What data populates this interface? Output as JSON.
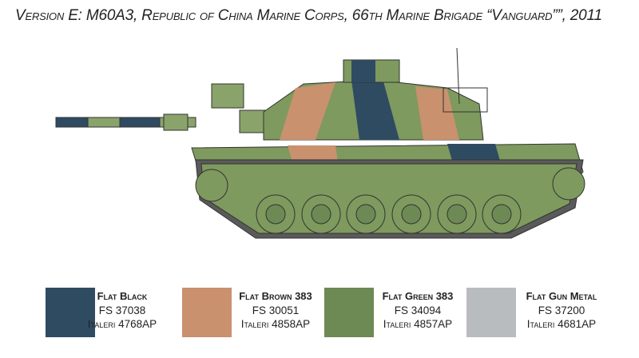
{
  "title": "Version E: M60A3, Republic of China Marine Corps, 66th Marine Brigade “Vanguard””, 2011",
  "illustration": {
    "subject": "tank-profile",
    "camo_colors": [
      "#2f4b62",
      "#c9916e",
      "#6d8a55"
    ]
  },
  "paints": [
    {
      "name": "Flat Black",
      "fs": "FS 37038",
      "italeri": "Italeri 4768AP",
      "color": "#2f4b62"
    },
    {
      "name": "Flat Brown 383",
      "fs": "FS 30051",
      "italeri": "Italeri 4858AP",
      "color": "#c9916e"
    },
    {
      "name": "Flat  Green 383",
      "fs": "FS 34094",
      "italeri": "Italeri 4857AP",
      "color": "#6d8a55"
    },
    {
      "name": "Flat Gun Metal",
      "fs": "FS 37200",
      "italeri": "Italeri 4681AP",
      "color": "#b9bcbf"
    }
  ]
}
